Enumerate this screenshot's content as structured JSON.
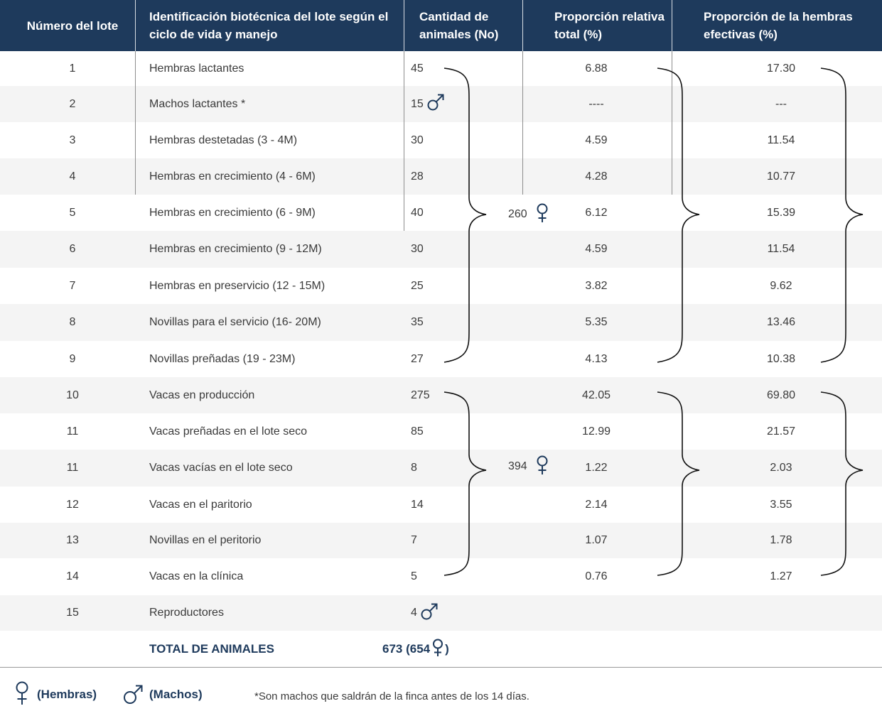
{
  "header": {
    "col1": "Número del lote",
    "col2": "Identificación biotécnica del lote según el ciclo de vida y manejo",
    "col3": "Cantidad de animales (No)",
    "col4": "Proporción relativa total (%)",
    "col5": "Proporción de la hembras efectivas (%)"
  },
  "rows": [
    {
      "num": "1",
      "id": "Hembras lactantes",
      "count": "45",
      "rel": "6.88",
      "eff": "17.30"
    },
    {
      "num": "2",
      "id": "Machos lactantes *",
      "count": "15",
      "rel": "----",
      "eff": "---",
      "icon": "male-icon"
    },
    {
      "num": "3",
      "id": "Hembras destetadas  (3 - 4M)",
      "count": "30",
      "rel": "4.59",
      "eff": "11.54"
    },
    {
      "num": "4",
      "id": "Hembras en crecimiento (4 - 6M)",
      "count": "28",
      "rel": "4.28",
      "eff": "10.77"
    },
    {
      "num": "5",
      "id": "Hembras en crecimiento (6 - 9M)",
      "count": "40",
      "rel": "6.12",
      "eff": "15.39"
    },
    {
      "num": "6",
      "id": "Hembras en crecimiento (9 - 12M)",
      "count": "30",
      "rel": "4.59",
      "eff": "11.54"
    },
    {
      "num": "7",
      "id": "Hembras en preservicio  (12 - 15M)",
      "count": "25",
      "rel": "3.82",
      "eff": "9.62"
    },
    {
      "num": "8",
      "id": "Novillas para el servicio (16- 20M)",
      "count": "35",
      "rel": "5.35",
      "eff": "13.46"
    },
    {
      "num": "9",
      "id": "Novillas preñadas (19 - 23M)",
      "count": "27",
      "rel": "4.13",
      "eff": "10.38"
    },
    {
      "num": "10",
      "id": "Vacas en producción",
      "count": "275",
      "rel": "42.05",
      "eff": "69.80"
    },
    {
      "num": "11",
      "id": "Vacas preñadas en el lote seco",
      "count": "85",
      "rel": "12.99",
      "eff": "21.57"
    },
    {
      "num": "11",
      "id": "Vacas vacías en el lote seco",
      "count": "8",
      "rel": "1.22",
      "eff": "2.03"
    },
    {
      "num": "12",
      "id": "Vacas en el paritorio",
      "count": "14",
      "rel": "2.14",
      "eff": "3.55"
    },
    {
      "num": "13",
      "id": "Novillas en el peritorio",
      "count": "7",
      "rel": "1.07",
      "eff": "1.78"
    },
    {
      "num": "14",
      "id": "Vacas en la clínica",
      "count": "5",
      "rel": "0.76",
      "eff": "1.27"
    },
    {
      "num": "15",
      "id": "Reproductores",
      "count": "4",
      "rel": "",
      "eff": "",
      "icon": "male-icon"
    }
  ],
  "groups": [
    {
      "total": "260",
      "icon": "female-icon"
    },
    {
      "total": "394",
      "icon": "female-icon"
    }
  ],
  "total": {
    "label": "TOTAL DE ANIMALES",
    "value": "673 (654",
    "value_suffix": ")"
  },
  "legend": {
    "female": "(Hembras)",
    "male": "(Machos)",
    "note": "*Son machos que saldrán de la finca antes de los 14 días."
  },
  "colors": {
    "header_bg": "#1e3a5c",
    "header_text": "#ffffff",
    "accent": "#1e3a5c",
    "alt_row": "#f4f4f4"
  }
}
